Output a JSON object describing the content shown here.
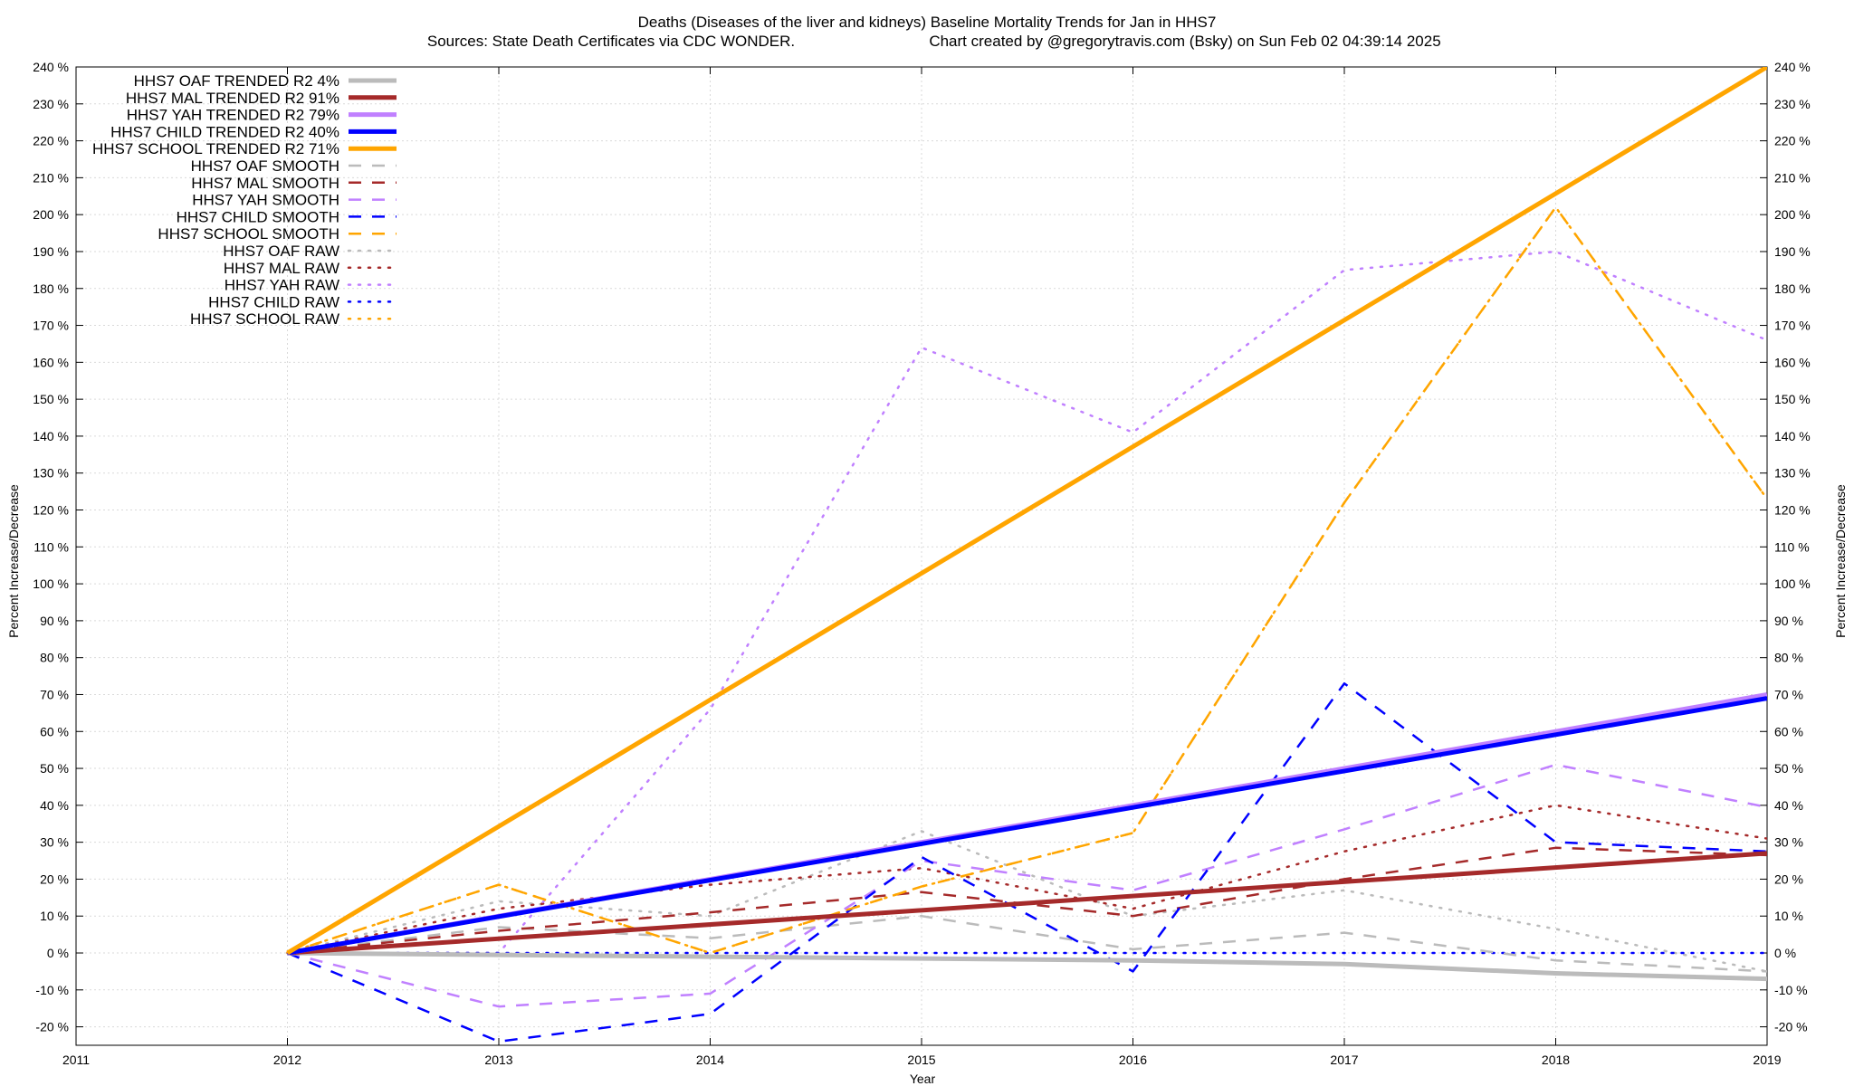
{
  "chart_data": {
    "type": "line",
    "title_line1": "Deaths (Diseases of the liver and kidneys)  Baseline Mortality Trends for Jan in HHS7",
    "title_line2_left": "Sources: State Death Certificates via CDC WONDER.",
    "title_line2_right": "Chart created by @gregorytravis.com (Bsky) on Sun Feb 02 04:39:14 2025",
    "xlabel": "Year",
    "ylabel": "Percent Increase/Decrease",
    "xlim": [
      2011,
      2019
    ],
    "ylim": [
      -25,
      240
    ],
    "x_ticks": [
      2011,
      2012,
      2013,
      2014,
      2015,
      2016,
      2017,
      2018,
      2019
    ],
    "y_ticks": [
      -20,
      -10,
      0,
      10,
      20,
      30,
      40,
      50,
      60,
      70,
      80,
      90,
      100,
      110,
      120,
      130,
      140,
      150,
      160,
      170,
      180,
      190,
      200,
      210,
      220,
      230,
      240
    ],
    "y_tick_suffix": " %",
    "grid": true,
    "legend_position": "top-left",
    "series": [
      {
        "name": "HHS7 OAF TRENDED R2  4%",
        "style": "solid-thick",
        "color": "#bbbbbb",
        "x": [
          2012,
          2013,
          2014,
          2015,
          2016,
          2017,
          2018,
          2019
        ],
        "y": [
          0,
          -0.5,
          -1,
          -1.5,
          -2,
          -3,
          -5.5,
          -7
        ]
      },
      {
        "name": "HHS7 MAL TRENDED R2  91%",
        "style": "solid-thick",
        "color": "#a52a2a",
        "x": [
          2012,
          2019
        ],
        "y": [
          0,
          27
        ]
      },
      {
        "name": "HHS7 YAH TRENDED R2  79%",
        "style": "solid-thick",
        "color": "#c080ff",
        "x": [
          2012,
          2019
        ],
        "y": [
          0,
          70
        ]
      },
      {
        "name": "HHS7 CHILD TRENDED R2  40%",
        "style": "solid-thick",
        "color": "#0000ff",
        "x": [
          2012,
          2019
        ],
        "y": [
          0,
          69
        ]
      },
      {
        "name": "HHS7 SCHOOL TRENDED R2  71%",
        "style": "solid-thick",
        "color": "#ffa500",
        "x": [
          2012,
          2019
        ],
        "y": [
          0,
          240
        ]
      },
      {
        "name": "HHS7 OAF SMOOTH",
        "style": "dashed",
        "color": "#bbbbbb",
        "x": [
          2012,
          2013,
          2014,
          2015,
          2016,
          2017,
          2018,
          2019
        ],
        "y": [
          0,
          7,
          4,
          10,
          1,
          5.5,
          -2,
          -5
        ]
      },
      {
        "name": "HHS7 MAL SMOOTH",
        "style": "dashed",
        "color": "#a52a2a",
        "x": [
          2012,
          2013,
          2014,
          2015,
          2016,
          2017,
          2018,
          2019
        ],
        "y": [
          0,
          6,
          11,
          16.5,
          10,
          20,
          28.5,
          26.5
        ]
      },
      {
        "name": "HHS7 YAH SMOOTH",
        "style": "dashed",
        "color": "#c080ff",
        "x": [
          2012,
          2013,
          2014,
          2015,
          2016,
          2017,
          2018,
          2019
        ],
        "y": [
          0,
          -14.5,
          -11,
          25,
          17,
          33.5,
          51,
          39.5
        ]
      },
      {
        "name": "HHS7 CHILD SMOOTH",
        "style": "dashed",
        "color": "#0000ff",
        "x": [
          2012,
          2013,
          2014,
          2015,
          2016,
          2017,
          2018,
          2019
        ],
        "y": [
          0,
          -24,
          -16.5,
          26,
          -5,
          73,
          30,
          27.5
        ]
      },
      {
        "name": "HHS7 SCHOOL SMOOTH",
        "style": "dashed",
        "color": "#ffa500",
        "x": [
          2012,
          2013,
          2014,
          2015,
          2016,
          2017,
          2018,
          2019
        ],
        "y": [
          0,
          18.5,
          0,
          18,
          32.5,
          122,
          202,
          123
        ]
      },
      {
        "name": "HHS7 OAF RAW",
        "style": "dotted",
        "color": "#bbbbbb",
        "x": [
          2012,
          2013,
          2014,
          2015,
          2016,
          2017,
          2018,
          2019
        ],
        "y": [
          0,
          14,
          10,
          33,
          10,
          17,
          6.5,
          -5
        ]
      },
      {
        "name": "HHS7 MAL RAW",
        "style": "dotted",
        "color": "#a52a2a",
        "x": [
          2012,
          2013,
          2014,
          2015,
          2016,
          2017,
          2018,
          2019
        ],
        "y": [
          0,
          12,
          18.5,
          23,
          12,
          27.5,
          40,
          31
        ]
      },
      {
        "name": "HHS7 YAH RAW",
        "style": "dotted",
        "color": "#c080ff",
        "x": [
          2012,
          2013,
          2014,
          2015,
          2016,
          2017,
          2018,
          2019
        ],
        "y": [
          0,
          0,
          66,
          164,
          141,
          185,
          190,
          166
        ]
      },
      {
        "name": "HHS7 CHILD RAW",
        "style": "dotted",
        "color": "#0000ff",
        "x": [
          2012,
          2013,
          2014,
          2015,
          2016,
          2017,
          2018,
          2019
        ],
        "y": [
          0,
          0,
          0,
          0,
          0,
          0,
          0,
          0
        ]
      },
      {
        "name": "HHS7 SCHOOL RAW",
        "style": "dotted",
        "color": "#ffa500",
        "x": [
          2012,
          2013,
          2014,
          2015,
          2016,
          2017,
          2018,
          2019
        ],
        "y": [
          0,
          18.5,
          0,
          18,
          32.5,
          122,
          202,
          123
        ]
      }
    ]
  }
}
